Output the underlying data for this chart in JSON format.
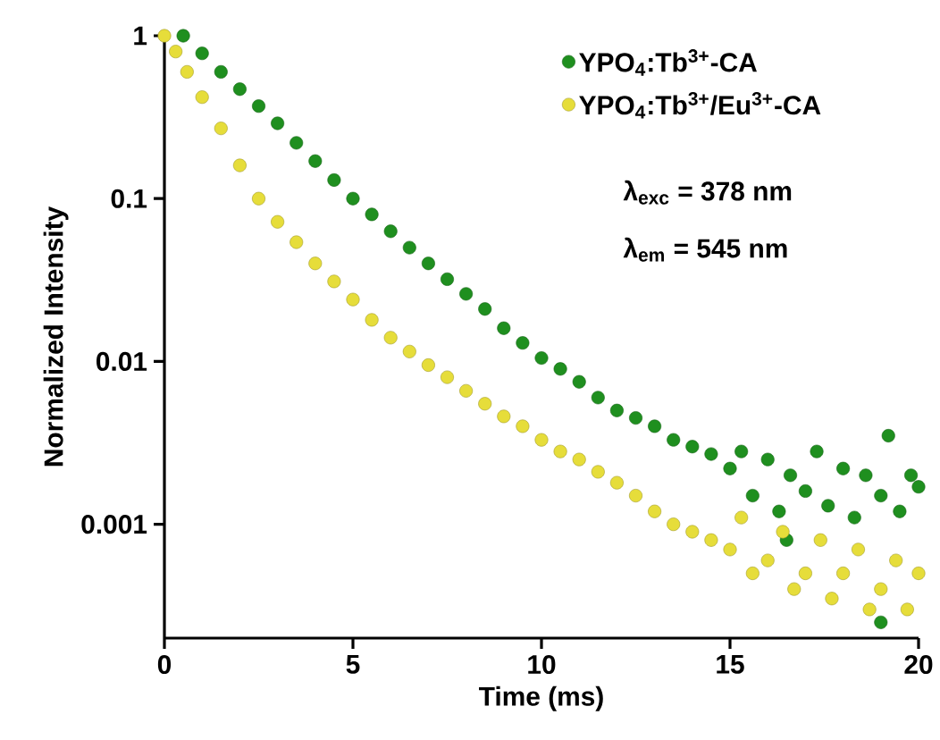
{
  "chart_data": {
    "type": "scatter",
    "xlabel": "Time (ms)",
    "ylabel": "Normalized Intensity",
    "log": "y",
    "xlim": [
      0,
      20
    ],
    "ylim": [
      0.0002,
      1
    ],
    "xticks": [
      0,
      5,
      10,
      15,
      20
    ],
    "yticks": [
      0.001,
      0.01,
      0.1,
      1
    ],
    "legend": "top right",
    "marker": "circle",
    "annotations": [
      "λ$_{exc}$ = 378 nm",
      "λ$_{em}$ = 545 nm"
    ],
    "series": [
      {
        "name": "YPO$_{4}$:Tb$^{3+}$-CA",
        "color": "#1f8f1f",
        "x": [
          0.5,
          1,
          1.5,
          2,
          2.5,
          3,
          3.5,
          4,
          4.5,
          5,
          5.5,
          6,
          6.5,
          7,
          7.5,
          8,
          8.5,
          9,
          9.5,
          10,
          10.5,
          11,
          11.5,
          12,
          12.5,
          13,
          13.5,
          14,
          14.5,
          15,
          15.3,
          15.6,
          16,
          16.3,
          16.5,
          16.6,
          17,
          17.3,
          17.6,
          18,
          18.3,
          18.6,
          19,
          19,
          19.2,
          19.5,
          19.8,
          20
        ],
        "values": [
          1,
          0.78,
          0.6,
          0.47,
          0.37,
          0.29,
          0.22,
          0.17,
          0.13,
          0.1,
          0.08,
          0.063,
          0.05,
          0.04,
          0.032,
          0.026,
          0.021,
          0.016,
          0.013,
          0.0105,
          0.009,
          0.0075,
          0.006,
          0.005,
          0.0045,
          0.004,
          0.0033,
          0.003,
          0.0027,
          0.0022,
          0.0028,
          0.0015,
          0.0025,
          0.0012,
          0.0008,
          0.002,
          0.0016,
          0.0028,
          0.0013,
          0.0022,
          0.0011,
          0.002,
          0.0015,
          0.00025,
          0.0035,
          0.0012,
          0.002,
          0.0017
        ]
      },
      {
        "name": "YPO$_{4}$:Tb$^{3+}$/Eu$^{3+}$-CA",
        "color": "#e6dd3a",
        "x": [
          0,
          0.3,
          0.6,
          1,
          1.5,
          2,
          2.5,
          3,
          3.5,
          4,
          4.5,
          5,
          5.5,
          6,
          6.5,
          7,
          7.5,
          8,
          8.5,
          9,
          9.5,
          10,
          10.5,
          11,
          11.5,
          12,
          12.5,
          13,
          13.5,
          14,
          14.5,
          15,
          15.3,
          15.6,
          16,
          16.4,
          16.7,
          17,
          17.4,
          17.7,
          18,
          18.4,
          18.7,
          19,
          19.4,
          19.7,
          20
        ],
        "values": [
          1,
          0.8,
          0.6,
          0.42,
          0.27,
          0.16,
          0.1,
          0.072,
          0.054,
          0.04,
          0.031,
          0.024,
          0.018,
          0.014,
          0.0115,
          0.0095,
          0.008,
          0.0066,
          0.0055,
          0.0046,
          0.004,
          0.0033,
          0.0028,
          0.0025,
          0.0021,
          0.0018,
          0.0015,
          0.0012,
          0.001,
          0.0009,
          0.0008,
          0.0007,
          0.0011,
          0.0005,
          0.0006,
          0.0009,
          0.0004,
          0.0005,
          0.0008,
          0.00035,
          0.0005,
          0.0007,
          0.0003,
          0.0004,
          0.0006,
          0.0003,
          0.0005
        ]
      }
    ]
  }
}
